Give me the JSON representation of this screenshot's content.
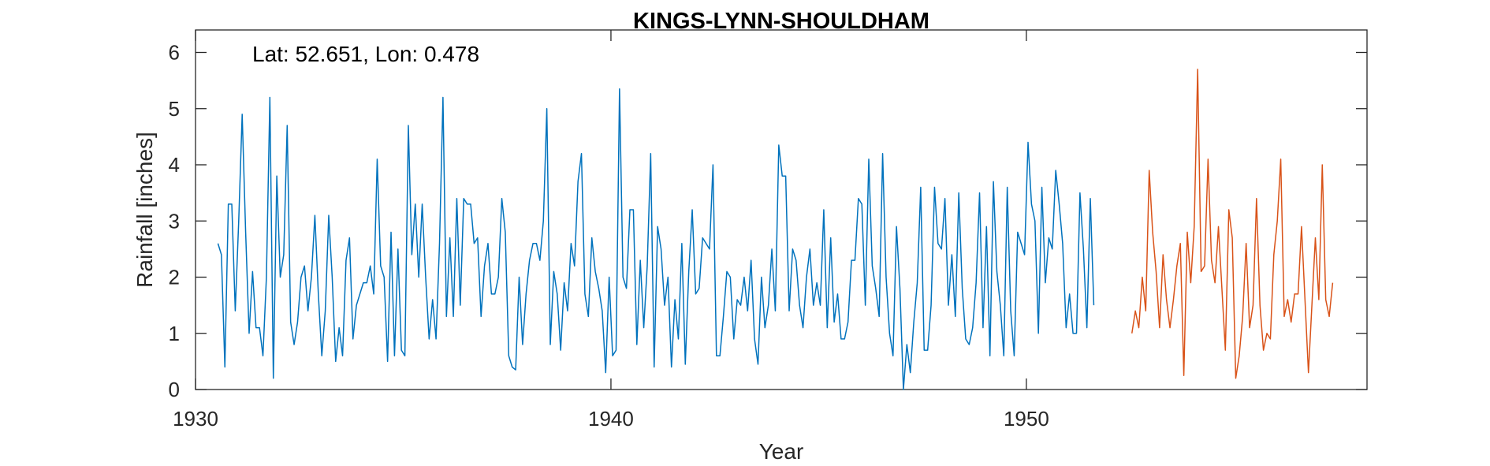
{
  "chart_data": {
    "type": "line",
    "title": "KINGS-LYNN-SHOULDHAM",
    "annotation": "Lat: 52.651, Lon: 0.478",
    "xlabel": "Year",
    "ylabel": "Rainfall [inches]",
    "xlim": [
      1930,
      1958.2
    ],
    "ylim": [
      0,
      6.4
    ],
    "xticks": [
      1930,
      1940,
      1950
    ],
    "yticks": [
      0,
      1,
      2,
      3,
      4,
      5,
      6
    ],
    "grid": false,
    "series": [
      {
        "color": "#0072BD",
        "x_start": 1930.54,
        "x_step": 0.0833333,
        "values": [
          2.6,
          2.4,
          0.4,
          3.3,
          3.3,
          1.4,
          3.0,
          4.9,
          2.8,
          1.0,
          2.1,
          1.1,
          1.1,
          0.6,
          2.0,
          5.2,
          0.2,
          3.8,
          2.0,
          2.4,
          4.7,
          1.2,
          0.8,
          1.2,
          2.0,
          2.2,
          1.4,
          2.0,
          3.1,
          1.7,
          0.6,
          1.4,
          3.1,
          2.0,
          0.5,
          1.1,
          0.6,
          2.3,
          2.7,
          0.9,
          1.5,
          1.7,
          1.9,
          1.9,
          2.2,
          1.7,
          4.1,
          2.2,
          2.0,
          0.5,
          2.8,
          0.6,
          2.5,
          0.7,
          0.6,
          4.7,
          2.4,
          3.3,
          2.0,
          3.3,
          2.0,
          0.9,
          1.6,
          0.9,
          2.6,
          5.2,
          1.3,
          2.7,
          1.3,
          3.4,
          1.5,
          3.4,
          3.3,
          3.3,
          2.6,
          2.7,
          1.3,
          2.2,
          2.6,
          1.7,
          1.7,
          2.0,
          3.4,
          2.8,
          0.6,
          0.4,
          0.35,
          2.0,
          0.8,
          1.7,
          2.3,
          2.6,
          2.6,
          2.3,
          3.0,
          5.0,
          0.8,
          2.1,
          1.7,
          0.7,
          1.9,
          1.4,
          2.6,
          2.2,
          3.7,
          4.2,
          1.7,
          1.3,
          2.7,
          2.1,
          1.8,
          1.4,
          0.3,
          2.0,
          0.6,
          0.7,
          5.35,
          2.0,
          1.8,
          3.2,
          3.2,
          0.8,
          2.3,
          1.1,
          2.2,
          4.2,
          0.4,
          2.9,
          2.5,
          1.5,
          2.0,
          0.4,
          1.6,
          0.9,
          2.6,
          0.45,
          2.1,
          3.2,
          1.7,
          1.8,
          2.7,
          2.6,
          2.5,
          4.0,
          0.6,
          0.6,
          1.3,
          2.1,
          2.0,
          0.9,
          1.6,
          1.5,
          2.0,
          1.4,
          2.3,
          0.9,
          0.45,
          2.0,
          1.1,
          1.5,
          2.5,
          1.4,
          4.35,
          3.8,
          3.8,
          1.4,
          2.5,
          2.3,
          1.5,
          1.1,
          2.0,
          2.5,
          1.5,
          1.9,
          1.5,
          3.2,
          1.1,
          2.7,
          1.2,
          1.7,
          0.9,
          0.9,
          1.2,
          2.3,
          2.3,
          3.4,
          3.3,
          1.5,
          4.1,
          2.2,
          1.8,
          1.3,
          4.2,
          2.0,
          1.0,
          0.6,
          2.9,
          1.8,
          0.0,
          0.8,
          0.3,
          1.2,
          1.9,
          3.6,
          0.7,
          0.7,
          1.5,
          3.6,
          2.6,
          2.5,
          3.4,
          1.5,
          2.4,
          1.3,
          3.5,
          1.8,
          0.9,
          0.8,
          1.1,
          1.9,
          3.5,
          1.1,
          2.9,
          0.6,
          3.7,
          2.1,
          1.5,
          0.6,
          3.6,
          1.4,
          0.6,
          2.8,
          2.6,
          2.4,
          4.4,
          3.3,
          3.0,
          1.0,
          3.6,
          1.9,
          2.7,
          2.5,
          3.9,
          3.3,
          2.6,
          1.1,
          1.7,
          1.0,
          1.0,
          3.5,
          2.5,
          1.1,
          3.4,
          1.5
        ]
      },
      {
        "color": "#D95319",
        "x_start": 1952.54,
        "x_step": 0.0833333,
        "values": [
          1.0,
          1.4,
          1.1,
          2.0,
          1.4,
          3.9,
          2.8,
          2.1,
          1.1,
          2.4,
          1.6,
          1.1,
          1.6,
          2.2,
          2.6,
          0.25,
          2.8,
          1.9,
          2.9,
          5.7,
          2.1,
          2.2,
          4.1,
          2.3,
          1.9,
          2.9,
          1.8,
          0.7,
          3.2,
          2.7,
          0.2,
          0.6,
          1.3,
          2.6,
          1.1,
          1.5,
          3.4,
          1.5,
          0.7,
          1.0,
          0.9,
          2.4,
          3.0,
          4.1,
          1.3,
          1.6,
          1.2,
          1.7,
          1.7,
          2.9,
          1.6,
          0.3,
          1.5,
          2.7,
          1.6,
          4.0,
          1.6,
          1.3,
          1.9
        ]
      }
    ]
  }
}
